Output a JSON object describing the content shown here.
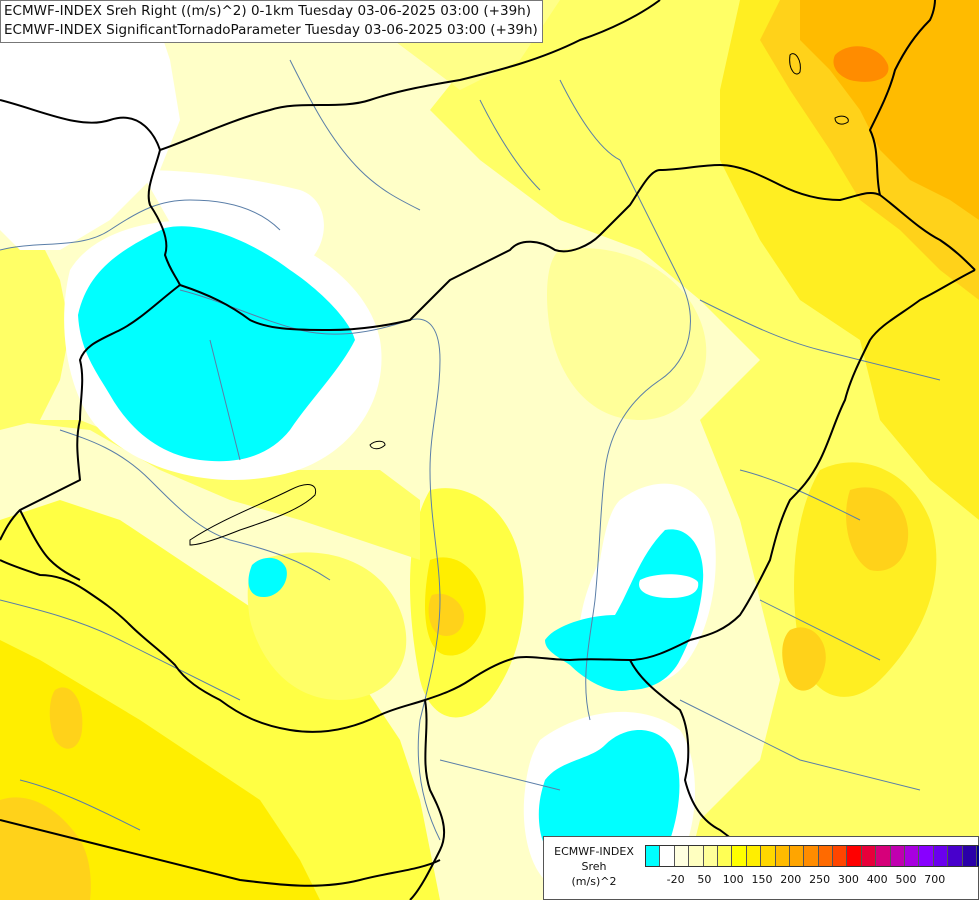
{
  "header": {
    "line1": "ECMWF-INDEX Sreh Right ((m/s)^2) 0-1km Tuesday 03-06-2025 03:00 (+39h)",
    "line2": "ECMWF-INDEX SignificantTornadoParameter Tuesday 03-06-2025 03:00 (+39h)"
  },
  "legend": {
    "line1": "ECMWF-INDEX",
    "line2": "Sreh",
    "line3": "(m/s)^2",
    "colors": [
      "#00ffff",
      "#ffffff",
      "#ffffe0",
      "#ffffc0",
      "#ffff99",
      "#ffff55",
      "#ffff00",
      "#ffee00",
      "#ffd700",
      "#ffbb00",
      "#ffa500",
      "#ff8c00",
      "#ff6a00",
      "#ff4500",
      "#ff0000",
      "#e8003a",
      "#d6007a",
      "#c000b0",
      "#a800e0",
      "#8800ff",
      "#6a00ee",
      "#4800cc",
      "#2a00a8",
      "#000088"
    ],
    "ticks": [
      "-20",
      "50",
      "100",
      "150",
      "200",
      "250",
      "300",
      "400",
      "500",
      "700"
    ]
  },
  "map": {
    "field_colors": {
      "white": "#ffffff",
      "pale": "#ffffc0",
      "light": "#ffff99",
      "yellow": "#ffff55",
      "gold": "#ffee00",
      "amber": "#ffd700",
      "orange": "#ffbb00",
      "dark_orange": "#ff8c00",
      "cyan": "#00ffff",
      "border": "#000000",
      "river": "#5a7ea8"
    }
  }
}
